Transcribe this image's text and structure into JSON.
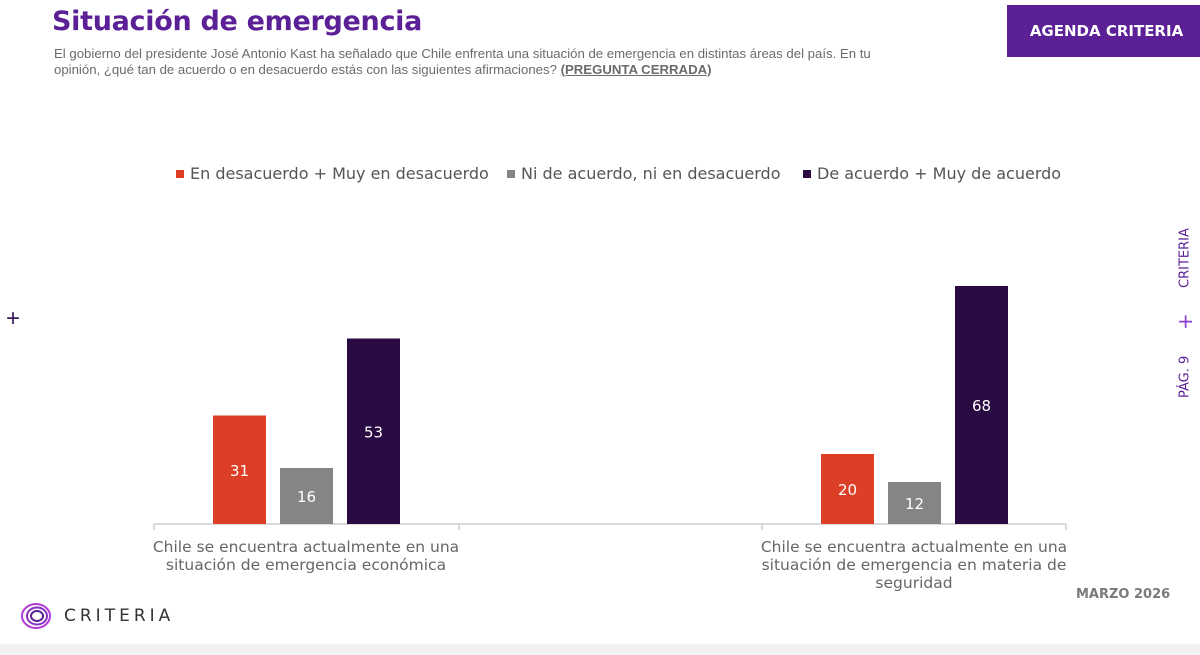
{
  "header": {
    "title": "Situación de emergencia",
    "subtitle": "El gobierno del presidente José Antonio Kast ha señalado que Chile enfrenta una situación de emergencia en distintas áreas del país. En tu opinión, ¿qué tan de acuerdo o en desacuerdo estás con las siguientes afirmaciones?",
    "question_type": "(PREGUNTA CERRADA)",
    "badge": "AGENDA CRITERIA"
  },
  "side": {
    "page": "PÁG. 9",
    "brand": "CRITERIA"
  },
  "footer": {
    "logo_text": "CRITERIA",
    "date": "MARZO 2026"
  },
  "colors": {
    "brand": "#5b1f96",
    "red": "#dc3f26",
    "gray": "#858585",
    "dark": "#2a0a42"
  },
  "chart_data": {
    "type": "bar",
    "title": "",
    "xlabel": "",
    "ylabel": "",
    "ylim": [
      0,
      75
    ],
    "categories": [
      "Chile se encuentra actualmente en una situación de emergencia económica",
      "Chile se encuentra actualmente en una situación de emergencia en materia de seguridad"
    ],
    "series": [
      {
        "name": "En desacuerdo + Muy en desacuerdo",
        "color": "#dc3f26",
        "values": [
          31,
          20
        ]
      },
      {
        "name": "Ni de acuerdo, ni en desacuerdo",
        "color": "#858585",
        "values": [
          16,
          12
        ]
      },
      {
        "name": "De acuerdo + Muy de acuerdo",
        "color": "#2a0a42",
        "values": [
          53,
          68
        ]
      }
    ]
  }
}
